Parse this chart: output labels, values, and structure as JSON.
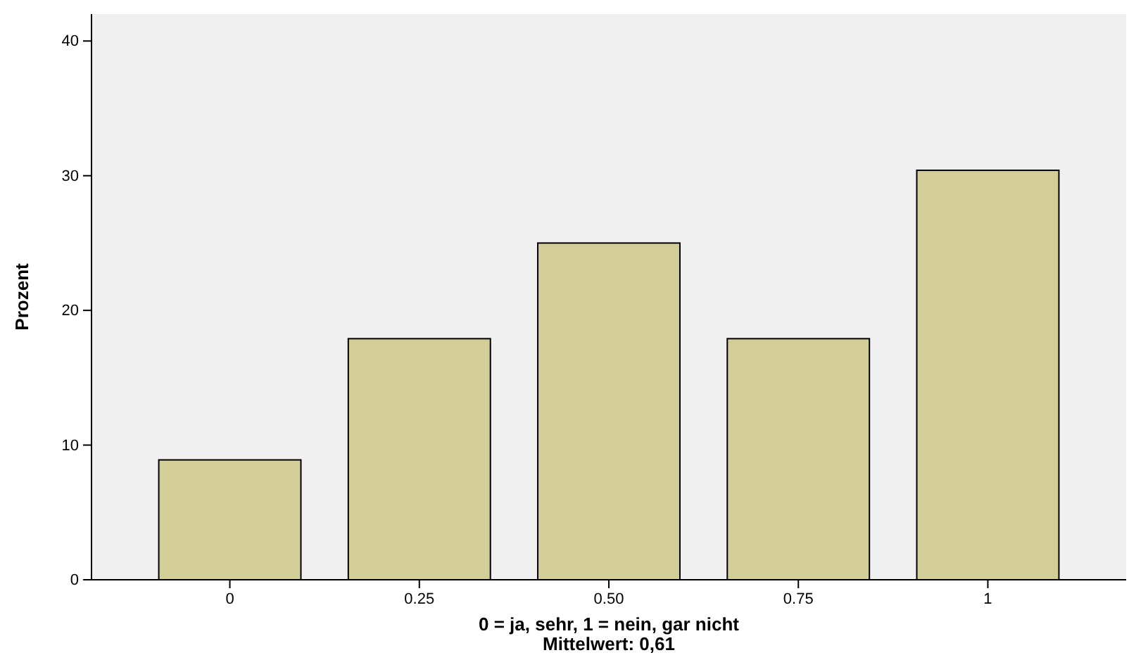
{
  "chart_data": {
    "type": "bar",
    "categories": [
      "0",
      "0.25",
      "0.50",
      "0.75",
      "1"
    ],
    "values": [
      8.9,
      17.9,
      25.0,
      17.9,
      30.4
    ],
    "color": "#d3ce97",
    "ylim": [
      0,
      42
    ],
    "yticks": [
      0,
      10,
      20,
      30,
      40
    ],
    "grid": false,
    "xlabel": "0 = ja, sehr, 1 = nein, gar nicht",
    "ylabel": "Prozent",
    "annotations": [
      "Mittelwert: 0,61"
    ]
  }
}
